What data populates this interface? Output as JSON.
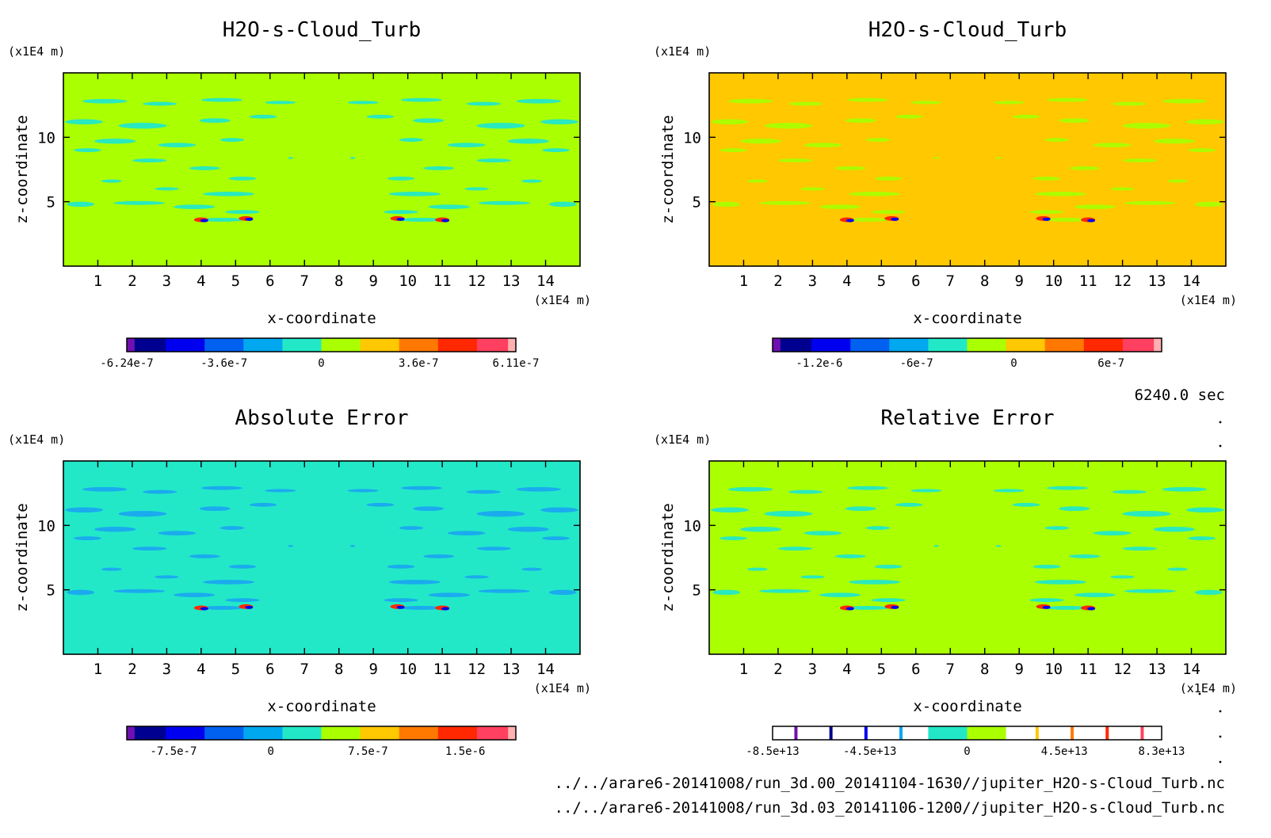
{
  "time_label": "6240.0 sec",
  "files": [
    "../../arare6-20141008/run_3d.00_20141104-1630//jupiter_H2O-s-Cloud_Turb.nc",
    "../../arare6-20141008/run_3d.03_20141106-1200//jupiter_H2O-s-Cloud_Turb.nc"
  ],
  "chart_data": [
    {
      "type": "heatmap",
      "title": "H2O-s-Cloud_Turb",
      "xlabel": "x-coordinate",
      "ylabel": "z-coordinate",
      "x_unit": "(x1E4 m)",
      "y_unit": "(x1E4 m)",
      "xlim": [
        0,
        15
      ],
      "ylim": [
        0,
        15
      ],
      "x_ticks": [
        "1",
        "2",
        "3",
        "4",
        "5",
        "6",
        "7",
        "8",
        "9",
        "10",
        "11",
        "12",
        "13",
        "14"
      ],
      "y_ticks": [
        "5",
        "10"
      ],
      "background": "#aaff00",
      "pattern_color": "#22e8c8",
      "colorbar_labels": [
        "-6.24e-7",
        "-3.6e-7",
        "0",
        "3.6e-7",
        "6.11e-7"
      ],
      "colorbar_colors": [
        "#7010b0",
        "#000090",
        "#0000f0",
        "#0060f0",
        "#00a8f0",
        "#22e8c8",
        "#aaff00",
        "#ffc800",
        "#ff7800",
        "#ff2800",
        "#ff4060",
        "#ffb0b0"
      ]
    },
    {
      "type": "heatmap",
      "title": "H2O-s-Cloud_Turb",
      "xlabel": "x-coordinate",
      "ylabel": "z-coordinate",
      "x_unit": "(x1E4 m)",
      "y_unit": "(x1E4 m)",
      "xlim": [
        0,
        15
      ],
      "ylim": [
        0,
        15
      ],
      "x_ticks": [
        "1",
        "2",
        "3",
        "4",
        "5",
        "6",
        "7",
        "8",
        "9",
        "10",
        "11",
        "12",
        "13",
        "14"
      ],
      "y_ticks": [
        "5",
        "10"
      ],
      "background": "#ffc800",
      "pattern_color": "#aaff00",
      "colorbar_labels": [
        "-1.2e-6",
        "-6e-7",
        "0",
        "6e-7"
      ],
      "colorbar_colors": [
        "#7010b0",
        "#000090",
        "#0000f0",
        "#0060f0",
        "#00a8f0",
        "#22e8c8",
        "#aaff00",
        "#ffc800",
        "#ff7800",
        "#ff2800",
        "#ff4060",
        "#ffb0b0"
      ]
    },
    {
      "type": "heatmap",
      "title": "Absolute Error",
      "xlabel": "x-coordinate",
      "ylabel": "z-coordinate",
      "x_unit": "(x1E4 m)",
      "y_unit": "(x1E4 m)",
      "xlim": [
        0,
        15
      ],
      "ylim": [
        0,
        15
      ],
      "x_ticks": [
        "1",
        "2",
        "3",
        "4",
        "5",
        "6",
        "7",
        "8",
        "9",
        "10",
        "11",
        "12",
        "13",
        "14"
      ],
      "y_ticks": [
        "5",
        "10"
      ],
      "background": "#22e8c8",
      "pattern_color": "#1aa8f0",
      "colorbar_labels": [
        "-7.5e-7",
        "0",
        "7.5e-7",
        "1.5e-6"
      ],
      "colorbar_colors": [
        "#7010b0",
        "#000090",
        "#0000f0",
        "#0060f0",
        "#00a8f0",
        "#22e8c8",
        "#aaff00",
        "#ffc800",
        "#ff7800",
        "#ff2800",
        "#ff4060",
        "#ffb0b0"
      ]
    },
    {
      "type": "heatmap",
      "title": "Relative Error",
      "xlabel": "x-coordinate",
      "ylabel": "z-coordinate",
      "x_unit": "(x1E4 m)",
      "y_unit": "(x1E4 m)",
      "xlim": [
        0,
        15
      ],
      "ylim": [
        0,
        15
      ],
      "x_ticks": [
        "1",
        "2",
        "3",
        "4",
        "5",
        "6",
        "7",
        "8",
        "9",
        "10",
        "11",
        "12",
        "13",
        "14"
      ],
      "y_ticks": [
        "5",
        "10"
      ],
      "background": "#aaff00",
      "pattern_color": "#22e8c8",
      "colorbar_labels": [
        "-8.5e+13",
        "-4.5e+13",
        "0",
        "4.5e+13",
        "8.3e+13"
      ],
      "colorbar_colors": [
        "#ffffff",
        "#ffffff",
        "#ffffff",
        "#ffffff",
        "#ffffff",
        "#22e8c8",
        "#aaff00",
        "#ffffff",
        "#ffffff",
        "#ffffff",
        "#ffffff",
        "#ffffff"
      ],
      "colorbar_lines": [
        "#7010b0",
        "#000090",
        "#0000f0",
        "#00a8f0",
        "#ffc800",
        "#ff7800",
        "#ff2800",
        "#ff4060"
      ]
    }
  ]
}
